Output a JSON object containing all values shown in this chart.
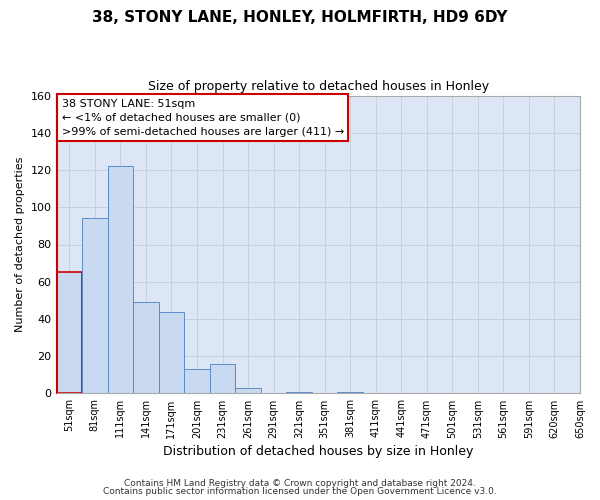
{
  "title": "38, STONY LANE, HONLEY, HOLMFIRTH, HD9 6DY",
  "subtitle": "Size of property relative to detached houses in Honley",
  "xlabel": "Distribution of detached houses by size in Honley",
  "ylabel": "Number of detached properties",
  "bar_values": [
    65,
    94,
    122,
    49,
    44,
    13,
    16,
    3,
    0,
    1,
    0,
    1,
    0,
    0,
    0,
    0,
    0,
    0,
    0,
    0
  ],
  "bin_labels": [
    "51sqm",
    "81sqm",
    "111sqm",
    "141sqm",
    "171sqm",
    "201sqm",
    "231sqm",
    "261sqm",
    "291sqm",
    "321sqm",
    "351sqm",
    "381sqm",
    "411sqm",
    "441sqm",
    "471sqm",
    "501sqm",
    "531sqm",
    "561sqm",
    "591sqm",
    "620sqm",
    "650sqm"
  ],
  "bar_color": "#c9d9ef",
  "bar_edge_color": "#5b8cc8",
  "ylim": [
    0,
    160
  ],
  "yticks": [
    0,
    20,
    40,
    60,
    80,
    100,
    120,
    140,
    160
  ],
  "grid_color": "#c8d0de",
  "plot_bg_color": "#dce6f5",
  "fig_bg_color": "#ffffff",
  "annotation_box_color": "#ffffff",
  "annotation_border_color": "#cc0000",
  "annotation_line1": "38 STONY LANE: 51sqm",
  "annotation_line2": "← <1% of detached houses are smaller (0)",
  "annotation_line3": ">99% of semi-detached houses are larger (411) →",
  "footer_line1": "Contains HM Land Registry data © Crown copyright and database right 2024.",
  "footer_line2": "Contains public sector information licensed under the Open Government Licence v3.0.",
  "highlight_bar_index": 0,
  "highlight_bar_edge_color": "#cc0000",
  "left_spine_color": "#cc0000"
}
